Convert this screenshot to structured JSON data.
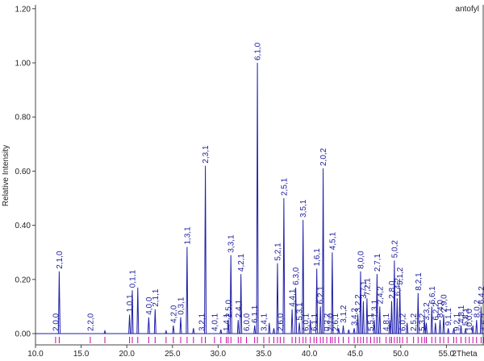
{
  "chart_data": {
    "type": "line",
    "title": "antofyl",
    "xlabel": "2Theta",
    "ylabel": "Relative Intensity",
    "xlim": [
      10.0,
      60.0
    ],
    "ylim": [
      0.0,
      1.2
    ],
    "x_ticks": [
      "10.0",
      "15.0",
      "20.0",
      "25.0",
      "30.0",
      "35.0",
      "40.0",
      "45.0",
      "50.0",
      "55.0"
    ],
    "y_ticks": [
      "0.00",
      "0.20",
      "0.40",
      "0.60",
      "0.80",
      "1.00",
      "1.20"
    ],
    "grid": false,
    "line_color": "#1f1fa8",
    "marker_color": "#cc00aa",
    "peaks": [
      {
        "x": 12.2,
        "y": 0.0,
        "label": "2,0,0"
      },
      {
        "x": 12.6,
        "y": 0.23,
        "label": "2,1,0"
      },
      {
        "x": 16.0,
        "y": 0.0,
        "label": "2,2,0"
      },
      {
        "x": 20.3,
        "y": 0.07,
        "label": "1,0,1"
      },
      {
        "x": 20.6,
        "y": 0.16,
        "label": "0,1,1"
      },
      {
        "x": 21.2,
        "y": 0.17,
        "label": ""
      },
      {
        "x": 22.4,
        "y": 0.06,
        "label": "4,0,0"
      },
      {
        "x": 23.1,
        "y": 0.09,
        "label": "2,1,1"
      },
      {
        "x": 25.1,
        "y": 0.03,
        "label": "4,2,0"
      },
      {
        "x": 25.9,
        "y": 0.06,
        "label": "0,3,1"
      },
      {
        "x": 26.6,
        "y": 0.32,
        "label": "1,3,1"
      },
      {
        "x": 28.2,
        "y": 0.0,
        "label": "3,2,1"
      },
      {
        "x": 28.6,
        "y": 0.62,
        "label": "2,3,1"
      },
      {
        "x": 29.6,
        "y": 0.0,
        "label": "4,0,1"
      },
      {
        "x": 30.9,
        "y": 0.0,
        "label": "1,4,1"
      },
      {
        "x": 31.1,
        "y": 0.05,
        "label": "2,5,0"
      },
      {
        "x": 31.4,
        "y": 0.29,
        "label": "3,3,1"
      },
      {
        "x": 32.2,
        "y": 0.05,
        "label": "2,4,1"
      },
      {
        "x": 32.5,
        "y": 0.22,
        "label": "4,2,1"
      },
      {
        "x": 33.1,
        "y": 0.0,
        "label": "6,0,0"
      },
      {
        "x": 34.0,
        "y": 0.03,
        "label": "6,1,1"
      },
      {
        "x": 34.3,
        "y": 1.0,
        "label": "6,1,0"
      },
      {
        "x": 35.0,
        "y": 0.0,
        "label": "3,4,1"
      },
      {
        "x": 36.5,
        "y": 0.26,
        "label": "5,2,1"
      },
      {
        "x": 36.8,
        "y": 0.0,
        "label": "2,6,0"
      },
      {
        "x": 37.2,
        "y": 0.5,
        "label": "2,5,1"
      },
      {
        "x": 38.1,
        "y": 0.09,
        "label": "4,4,1"
      },
      {
        "x": 38.5,
        "y": 0.17,
        "label": "6,3,0"
      },
      {
        "x": 38.9,
        "y": 0.04,
        "label": "5,3,1"
      },
      {
        "x": 39.3,
        "y": 0.42,
        "label": "3,5,1"
      },
      {
        "x": 39.6,
        "y": 0.0,
        "label": "6,0,1"
      },
      {
        "x": 40.5,
        "y": 0.0,
        "label": "6,1,1"
      },
      {
        "x": 40.8,
        "y": 0.24,
        "label": "1,6,1"
      },
      {
        "x": 41.2,
        "y": 0.1,
        "label": "6,2,1"
      },
      {
        "x": 41.5,
        "y": 0.61,
        "label": "2,0,2"
      },
      {
        "x": 41.9,
        "y": 0.0,
        "label": "0,2,2"
      },
      {
        "x": 42.3,
        "y": 0.0,
        "label": "2,7,0"
      },
      {
        "x": 42.5,
        "y": 0.3,
        "label": "4,5,1"
      },
      {
        "x": 42.8,
        "y": 0.0,
        "label": "2,6,1"
      },
      {
        "x": 43.7,
        "y": 0.03,
        "label": "3,1,2"
      },
      {
        "x": 44.9,
        "y": 0.02,
        "label": "3,4,2"
      },
      {
        "x": 45.3,
        "y": 0.07,
        "label": "3,2,2"
      },
      {
        "x": 45.6,
        "y": 0.23,
        "label": "8,0,0"
      },
      {
        "x": 45.9,
        "y": 0.12,
        "label": "3,7,1"
      },
      {
        "x": 46.3,
        "y": 0.13,
        "label": "7,2,1"
      },
      {
        "x": 46.7,
        "y": 0.0,
        "label": "5,5,1"
      },
      {
        "x": 47.1,
        "y": 0.05,
        "label": "7,3,1"
      },
      {
        "x": 47.4,
        "y": 0.22,
        "label": "2,7,1"
      },
      {
        "x": 47.7,
        "y": 0.1,
        "label": "2,4,2"
      },
      {
        "x": 48.4,
        "y": 0.0,
        "label": "4,8,1"
      },
      {
        "x": 49.0,
        "y": 0.12,
        "label": "2,8,0"
      },
      {
        "x": 49.3,
        "y": 0.27,
        "label": "5,0,2"
      },
      {
        "x": 49.6,
        "y": 0.13,
        "label": "6,4,2"
      },
      {
        "x": 49.9,
        "y": 0.17,
        "label": "5,1,2"
      },
      {
        "x": 50.2,
        "y": 0.0,
        "label": "6,0,2"
      },
      {
        "x": 51.4,
        "y": 0.0,
        "label": "2,5,2"
      },
      {
        "x": 51.9,
        "y": 0.15,
        "label": "8,2,1"
      },
      {
        "x": 52.3,
        "y": 0.0,
        "label": "5,3,2"
      },
      {
        "x": 52.8,
        "y": 0.04,
        "label": "3,3,2"
      },
      {
        "x": 53.4,
        "y": 0.1,
        "label": "6,6,1"
      },
      {
        "x": 53.8,
        "y": 0.04,
        "label": "6,2,2"
      },
      {
        "x": 54.3,
        "y": 0.05,
        "label": "8,4,0"
      },
      {
        "x": 54.7,
        "y": 0.07,
        "label": "2,9,0"
      },
      {
        "x": 55.2,
        "y": 0.02,
        "label": "9,1,1"
      },
      {
        "x": 56.1,
        "y": 0.0,
        "label": "9,2,1"
      },
      {
        "x": 56.6,
        "y": 0.03,
        "label": "4,8,1"
      },
      {
        "x": 57.1,
        "y": 0.02,
        "label": "5,8,1"
      },
      {
        "x": 57.5,
        "y": 0.0,
        "label": "10,0,0"
      },
      {
        "x": 58.3,
        "y": 0.05,
        "label": "8,0,2"
      },
      {
        "x": 58.8,
        "y": 0.1,
        "label": "6,4,2"
      },
      {
        "x": 59.1,
        "y": 0.0,
        "label": "4,6,2"
      }
    ],
    "extra_peaks": [
      {
        "x": 17.6,
        "y": 0.01
      },
      {
        "x": 24.3,
        "y": 0.01
      },
      {
        "x": 27.3,
        "y": 0.02
      },
      {
        "x": 30.3,
        "y": 0.015
      },
      {
        "x": 35.6,
        "y": 0.04
      },
      {
        "x": 36.1,
        "y": 0.02
      },
      {
        "x": 40.1,
        "y": 0.05
      },
      {
        "x": 43.2,
        "y": 0.02
      },
      {
        "x": 44.3,
        "y": 0.015
      },
      {
        "x": 48.8,
        "y": 0.05
      },
      {
        "x": 50.7,
        "y": 0.04
      },
      {
        "x": 52.6,
        "y": 0.05
      },
      {
        "x": 55.8,
        "y": 0.02
      },
      {
        "x": 57.9,
        "y": 0.03
      },
      {
        "x": 59.6,
        "y": 0.05
      }
    ]
  }
}
